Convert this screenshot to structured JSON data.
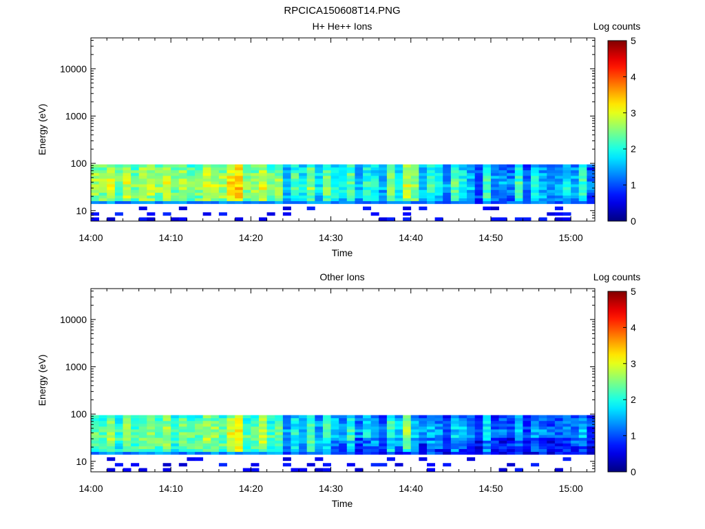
{
  "figure_title": "RPCICA150608T14.PNG",
  "panels_header": [
    "H+ He++ Ions",
    "Other Ions"
  ],
  "chart_data": [
    {
      "type": "heatmap",
      "title": "H+ He++ Ions",
      "xlabel": "Time",
      "ylabel": "Energy (eV)",
      "x_ticks": [
        "14:00",
        "14:10",
        "14:20",
        "14:30",
        "14:40",
        "14:50",
        "15:00"
      ],
      "y_ticks": [
        "10",
        "100",
        "1000",
        "10000"
      ],
      "y_scale": "log",
      "xlim": [
        "14:00",
        "15:03"
      ],
      "ylim": [
        6,
        45000
      ],
      "colorbar": {
        "label": "Log counts",
        "ticks": [
          "0",
          "1",
          "2",
          "3",
          "4",
          "5"
        ],
        "range": [
          0,
          5
        ],
        "colormap": "jet"
      },
      "band_log_counts_by_minute": [
        2.6,
        2.5,
        2.9,
        2.3,
        2.8,
        2.4,
        2.7,
        2.7,
        2.5,
        2.8,
        2.3,
        2.6,
        2.4,
        2.5,
        2.8,
        2.7,
        2.6,
        3.1,
        3.3,
        2.4,
        2.5,
        2.9,
        2.3,
        2.5,
        1.6,
        2.2,
        1.8,
        2.5,
        1.7,
        2.4,
        2.0,
        1.7,
        2.3,
        1.5,
        2.0,
        1.9,
        1.4,
        2.4,
        1.9,
        2.8,
        2.5,
        1.6,
        2.1,
        1.8,
        1.3,
        2.2,
        1.9,
        1.5,
        1.0,
        2.2,
        1.3,
        1.4,
        1.2,
        2.1,
        1.0,
        1.8,
        1.5,
        1.2,
        1.4,
        1.8,
        1.4,
        2.1,
        1.1
      ],
      "band_energy_range_eV": [
        14,
        95
      ]
    },
    {
      "type": "heatmap",
      "title": "Other Ions",
      "xlabel": "Time",
      "ylabel": "Energy (eV)",
      "x_ticks": [
        "14:00",
        "14:10",
        "14:20",
        "14:30",
        "14:40",
        "14:50",
        "15:00"
      ],
      "y_ticks": [
        "10",
        "100",
        "1000",
        "10000"
      ],
      "y_scale": "log",
      "xlim": [
        "14:00",
        "15:03"
      ],
      "ylim": [
        6,
        45000
      ],
      "colorbar": {
        "label": "Log counts",
        "ticks": [
          "0",
          "1",
          "2",
          "3",
          "4",
          "5"
        ],
        "range": [
          0,
          5
        ],
        "colormap": "jet"
      },
      "band_log_counts_by_minute": [
        2.3,
        2.2,
        2.6,
        2.0,
        2.5,
        2.1,
        2.4,
        2.5,
        2.3,
        2.6,
        2.0,
        2.4,
        2.2,
        2.3,
        2.6,
        2.5,
        2.3,
        2.9,
        3.1,
        2.2,
        2.3,
        2.7,
        2.1,
        2.3,
        1.3,
        1.9,
        1.5,
        2.3,
        1.4,
        2.1,
        1.7,
        1.4,
        2.0,
        1.2,
        1.7,
        1.6,
        1.1,
        2.1,
        1.6,
        2.6,
        1.6,
        1.2,
        1.5,
        1.3,
        1.0,
        1.6,
        1.5,
        1.2,
        0.9,
        1.8,
        1.0,
        1.1,
        1.0,
        1.5,
        0.9,
        1.3,
        1.2,
        1.0,
        1.1,
        1.3,
        1.1,
        1.5,
        0.9
      ],
      "band_energy_range_eV": [
        14,
        95
      ]
    }
  ]
}
